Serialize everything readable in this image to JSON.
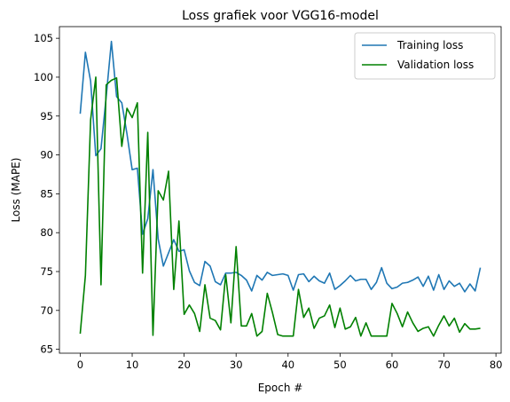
{
  "chart_data": {
    "type": "line",
    "title": "Loss grafiek voor VGG16-model",
    "xlabel": "Epoch #",
    "ylabel": "Loss (MAPE)",
    "xlim": [
      -4,
      81
    ],
    "ylim": [
      64.5,
      106.5
    ],
    "xticks": [
      0,
      10,
      20,
      30,
      40,
      50,
      60,
      70,
      80
    ],
    "yticks": [
      65,
      70,
      75,
      80,
      85,
      90,
      95,
      100,
      105
    ],
    "grid": false,
    "legend_position": "top-right",
    "series": [
      {
        "name": "Training loss",
        "color": "#1f77b4",
        "values": [
          95.3,
          103.2,
          99.5,
          89.9,
          90.8,
          97.5,
          104.6,
          97.5,
          96.7,
          92.7,
          88.1,
          88.3,
          79.8,
          81.8,
          88.1,
          79.2,
          75.7,
          77.4,
          79.1,
          77.6,
          77.8,
          75.1,
          73.6,
          73.2,
          76.3,
          75.7,
          73.7,
          73.3,
          74.8,
          74.8,
          74.9,
          74.5,
          73.9,
          72.5,
          74.5,
          73.9,
          74.9,
          74.5,
          74.6,
          74.7,
          74.5,
          72.6,
          74.6,
          74.7,
          73.7,
          74.4,
          73.8,
          73.5,
          74.8,
          72.7,
          73.2,
          73.8,
          74.5,
          73.8,
          74.0,
          74.0,
          72.7,
          73.6,
          75.5,
          73.5,
          72.8,
          73.0,
          73.5,
          73.6,
          73.9,
          74.3,
          73.1,
          74.4,
          72.6,
          74.6,
          72.7,
          73.8,
          73.1,
          73.5,
          72.4,
          73.4,
          72.5,
          75.5
        ]
      },
      {
        "name": "Validation loss",
        "color": "#008000",
        "values": [
          67.0,
          74.5,
          94.5,
          100.0,
          73.3,
          99.0,
          99.6,
          99.9,
          91.1,
          96.0,
          94.8,
          96.7,
          74.8,
          92.9,
          66.8,
          85.4,
          84.2,
          87.9,
          72.7,
          81.5,
          69.5,
          70.7,
          69.6,
          67.3,
          73.3,
          69.0,
          68.7,
          67.5,
          74.6,
          68.4,
          78.2,
          68.0,
          68.0,
          69.6,
          66.7,
          67.3,
          72.2,
          69.7,
          66.9,
          66.7,
          66.7,
          66.7,
          72.7,
          69.1,
          70.3,
          67.7,
          69.0,
          69.3,
          70.7,
          67.8,
          70.3,
          67.6,
          67.9,
          69.1,
          66.7,
          68.4,
          66.7,
          66.7,
          66.7,
          66.7,
          70.9,
          69.6,
          67.9,
          69.8,
          68.4,
          67.3,
          67.7,
          67.9,
          66.7,
          68.1,
          69.3,
          68.0,
          69.0,
          67.2,
          68.3,
          67.6,
          67.6,
          67.7
        ]
      }
    ]
  }
}
